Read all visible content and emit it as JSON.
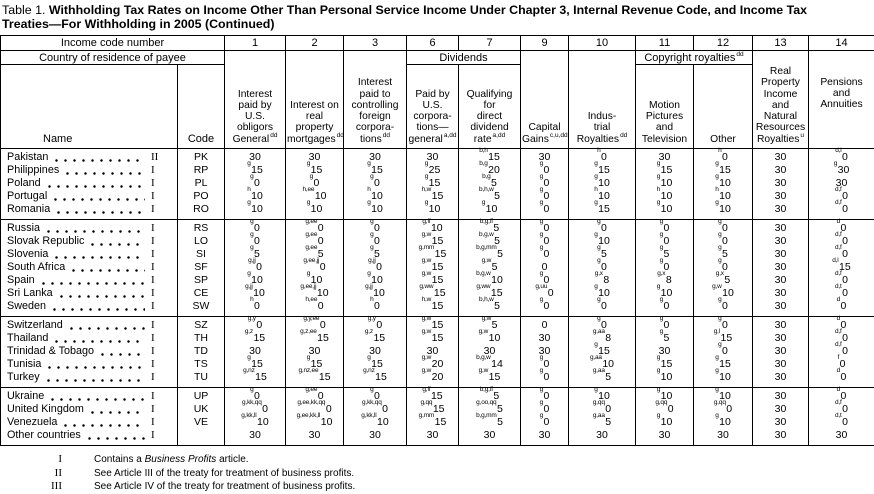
{
  "title": {
    "prefix": "Table 1.",
    "line1": "Withholding Tax Rates on Income Other Than Personal Service Income Under Chapter 3, Internal Revenue Code, and Income Tax",
    "line2": "Treaties—For Withholding in 2005 (Continued)"
  },
  "header": {
    "income_code_label": "Income code number",
    "country_label": "Country of residence of payee",
    "name_label": "Name",
    "code_label": "Code",
    "col_numbers": [
      "1",
      "2",
      "3",
      "6",
      "7",
      "9",
      "10",
      "11",
      "12",
      "13",
      "14"
    ],
    "dividends_label": "Dividends",
    "copyright_label": "Copyright royalties",
    "copyright_sup": "dd",
    "columns": [
      {
        "id": "1",
        "lines": [
          "Interest",
          "paid by",
          "U.S.",
          "obligors",
          "General"
        ],
        "sup": "dd"
      },
      {
        "id": "2",
        "lines": [
          "Interest on",
          "real",
          "property",
          "mortgages"
        ],
        "sup": "dd"
      },
      {
        "id": "3",
        "lines": [
          "Interest",
          "paid to",
          "controlling",
          "foreign",
          "corpora-",
          "tions"
        ],
        "sup": "dd"
      },
      {
        "id": "6",
        "lines": [
          "Paid by",
          "U.S.",
          "corpora-",
          "tions—",
          "general"
        ],
        "sup": "a,dd"
      },
      {
        "id": "7",
        "lines": [
          "Qualifying",
          "for",
          "direct",
          "dividend",
          "rate"
        ],
        "sup": "a,dd"
      },
      {
        "id": "9",
        "lines": [
          "Capital",
          "Gains"
        ],
        "sup": "c,u,dd"
      },
      {
        "id": "10",
        "lines": [
          "Indus-",
          "trial",
          "Royalties"
        ],
        "sup": "dd"
      },
      {
        "id": "11",
        "lines": [
          "Motion",
          "Pictures",
          "and",
          "Television"
        ],
        "sup": ""
      },
      {
        "id": "12",
        "lines": [
          "Other"
        ],
        "sup": ""
      },
      {
        "id": "13",
        "lines": [
          "Real",
          "Property",
          "Income and",
          "Natural",
          "Resources",
          "Royalties"
        ],
        "sup": "u"
      },
      {
        "id": "14",
        "lines": [
          "Pensions",
          "and",
          "Annuities"
        ],
        "sup": ""
      }
    ]
  },
  "table": {
    "column_order": [
      "1",
      "2",
      "3",
      "6",
      "7",
      "9",
      "10",
      "11",
      "12",
      "13",
      "14"
    ],
    "groups": [
      [
        {
          "name": "Pakistan",
          "roman": "II",
          "code": "PK",
          "cells": [
            "30",
            "30",
            "30",
            "30",
            "b,h^15",
            "30",
            "h^0",
            "30",
            "h^0",
            "30",
            "d,l^0"
          ]
        },
        {
          "name": "Philippines",
          "roman": "I",
          "code": "RP",
          "cells": [
            "g^15",
            "g^15",
            "g^15",
            "g^25",
            "b,g^20",
            "g^0",
            "g^15",
            "g^15",
            "g^15",
            "30",
            "g^30"
          ]
        },
        {
          "name": "Poland",
          "roman": "I",
          "code": "PL",
          "cells": [
            "g^0",
            "g^0",
            "g^0",
            "g^15",
            "b,g^5",
            "g^0",
            "g^10",
            "g^10",
            "g^10",
            "30",
            "30"
          ]
        },
        {
          "name": "Portugal",
          "roman": "I",
          "code": "PO",
          "cells": [
            "h^10",
            "h,ee^10",
            "h^10",
            "h,w^15",
            "b,h,w^5",
            "g^0",
            "h^10",
            "h^10",
            "h^10",
            "30",
            "d,f^0"
          ]
        },
        {
          "name": "Romania",
          "roman": "I",
          "code": "RO",
          "cells": [
            "g^10",
            "g^10",
            "g^10",
            "g^10",
            "g^10",
            "g^0",
            "g^15",
            "g^10",
            "g^10",
            "30",
            "d,f^0"
          ]
        }
      ],
      [
        {
          "name": "Russia",
          "roman": "I",
          "code": "RS",
          "cells": [
            "g^0",
            "g,ee^0",
            "g^0",
            "g,ff^10",
            "b,g,ff^5",
            "g^0",
            "g^0",
            "g^0",
            "g^0",
            "30",
            "d^0"
          ]
        },
        {
          "name": "Slovak Republic",
          "roman": "I",
          "code": "LO",
          "cells": [
            "g^0",
            "g,ee^0",
            "g^0",
            "g,w^15",
            "b,g,w^5",
            "g^0",
            "g^10",
            "g^0",
            "g^0",
            "30",
            "d,f^0"
          ]
        },
        {
          "name": "Slovenia",
          "roman": "I",
          "code": "SI",
          "cells": [
            "g^5",
            "g,ee^5",
            "g^5",
            "g,mm^15",
            "b,g,mm^5",
            "g^0",
            "g^5",
            "g^5",
            "g^5",
            "30",
            "d,f^0"
          ]
        },
        {
          "name": "South Africa",
          "roman": "I",
          "code": "SF",
          "cells": [
            "g,jj^0",
            "g,ee,jj^0",
            "g,jj^0",
            "g,w^15",
            "g,w^5",
            "0",
            "g^0",
            "g^0",
            "g^0",
            "30",
            "d,l^15"
          ]
        },
        {
          "name": "Spain",
          "roman": "I",
          "code": "SP",
          "cells": [
            "g^10",
            "g^10",
            "g^10",
            "g,w^15",
            "b,g,w^10",
            "g^0",
            "g,x^8",
            "g,x^8",
            "g,x^5",
            "30",
            "d,f^0"
          ]
        },
        {
          "name": "Sri Lanka",
          "roman": "I",
          "code": "CE",
          "cells": [
            "g,jj^10",
            "g,ee,jj^10",
            "g,jj^10",
            "g,ww^15",
            "g,ww^15",
            "g,uu^0",
            "g^10",
            "g^10",
            "g,w^10",
            "30",
            "d,t^0"
          ]
        },
        {
          "name": "Sweden",
          "roman": "I",
          "code": "SW",
          "cells": [
            "h^0",
            "h,ee^0",
            "h^0",
            "h,w^15",
            "b,h,w^5",
            "g^0",
            "g^0",
            "g^0",
            "g^0",
            "30",
            "d^0"
          ]
        }
      ],
      [
        {
          "name": "Switzerland",
          "roman": "I",
          "code": "SZ",
          "cells": [
            "g,y^0",
            "g,y,ee^0",
            "g,y^0",
            "g,w^15",
            "g,w^5",
            "0",
            "g^0",
            "g^0",
            "g^0",
            "30",
            "d^0"
          ]
        },
        {
          "name": "Thailand",
          "roman": "I",
          "code": "TH",
          "cells": [
            "g,z^15",
            "g,z,ee^15",
            "g,z^15",
            "g,w^15",
            "g,w^10",
            "30",
            "g,aa^8",
            "g^5",
            "g,l^15",
            "30",
            "d,f^0"
          ]
        },
        {
          "name": "Trinidad & Tobago",
          "roman": "I",
          "code": "TD",
          "cells": [
            "30",
            "30",
            "30",
            "30",
            "30",
            "30",
            "g^15",
            "30",
            "g^0",
            "30",
            "d,f^0"
          ]
        },
        {
          "name": "Tunisia",
          "roman": "I",
          "code": "TS",
          "cells": [
            "g^15",
            "g^15",
            "g^15",
            "g,w^20",
            "b,g,w^14",
            "g^0",
            "g,aa^10",
            "g^15",
            "g^15",
            "30",
            "f^0"
          ]
        },
        {
          "name": "Turkey",
          "roman": "I",
          "code": "TU",
          "cells": [
            "g,nz^15",
            "g,nz,ee^15",
            "g,nz^15",
            "g,w^20",
            "g,w^15",
            "g^0",
            "g,aa^5",
            "g^10",
            "g^10",
            "30",
            "d^0"
          ]
        }
      ],
      [
        {
          "name": "Ukraine",
          "roman": "I",
          "code": "UP",
          "cells": [
            "g^0",
            "g,ee^0",
            "g^0",
            "g,ff^15",
            "b,g,ff^5",
            "g^0",
            "g^10",
            "g^10",
            "g^10",
            "30",
            "d^0"
          ]
        },
        {
          "name": "United Kingdom",
          "roman": "I",
          "code": "UK",
          "cells": [
            "g,kk,qq^0",
            "g,ee,kk,qq^0",
            "g,kk,qq^0",
            "g,qq^15",
            "g,oo,qq^5",
            "g^0",
            "g,qq^0",
            "g,qq^0",
            "g,qq^0",
            "30",
            "d,f^0"
          ]
        },
        {
          "name": "Venezuela",
          "roman": "I",
          "code": "VE",
          "cells": [
            "g,kk,ll^10",
            "g,ee,kk,ll^10",
            "g,kk,ll^10",
            "g,mm^15",
            "b,g,mm^5",
            "g^0",
            "g,aa^5",
            "g^10",
            "g^10",
            "30",
            "d,t^0"
          ]
        },
        {
          "name": "Other countries",
          "roman": "I",
          "code": "",
          "cells": [
            "30",
            "30",
            "30",
            "30",
            "30",
            "30",
            "30",
            "30",
            "30",
            "30",
            "30"
          ]
        }
      ]
    ]
  },
  "footnotes": [
    {
      "marker": "I",
      "pre": "Contains a ",
      "italic": "Business Profits",
      "post": " article."
    },
    {
      "marker": "II",
      "pre": "See Article III of the treaty for treatment of business profits.",
      "italic": "",
      "post": ""
    },
    {
      "marker": "III",
      "pre": "See Article IV of the treaty for treatment of business profits.",
      "italic": "",
      "post": ""
    }
  ]
}
